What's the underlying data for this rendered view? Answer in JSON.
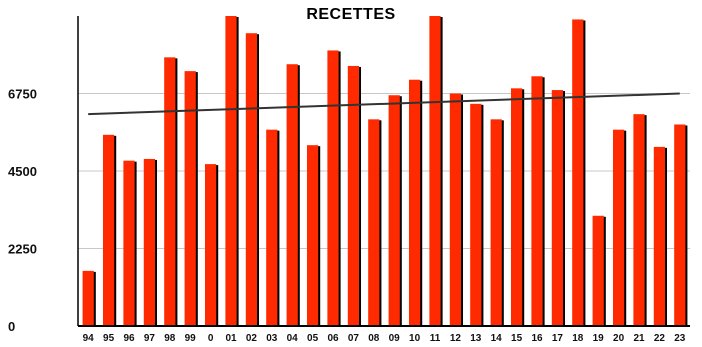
{
  "chart_data": {
    "type": "bar",
    "title": "RECETTES",
    "xlabel": "",
    "ylabel": "",
    "categories": [
      "94",
      "95",
      "96",
      "97",
      "98",
      "99",
      "0",
      "01",
      "02",
      "03",
      "04",
      "05",
      "06",
      "07",
      "08",
      "09",
      "10",
      "11",
      "12",
      "13",
      "14",
      "15",
      "16",
      "17",
      "18",
      "19",
      "20",
      "21",
      "22",
      "23"
    ],
    "values": [
      1600,
      5550,
      4800,
      4850,
      7800,
      7400,
      4700,
      9100,
      8500,
      5700,
      7600,
      5250,
      8000,
      7550,
      6000,
      6700,
      7150,
      9100,
      6750,
      6450,
      6000,
      6900,
      7250,
      6850,
      8900,
      3200,
      5700,
      6150,
      5200,
      5850
    ],
    "trendline": {
      "start": 6150,
      "end": 6750
    },
    "yticks": [
      "0",
      "2250",
      "4500",
      "6750"
    ],
    "ylim": [
      0,
      9000
    ],
    "grid": true,
    "legend": "none",
    "colors": {
      "bar": "#ff2a00",
      "bar_shadow": "#000000",
      "trend": "#333333",
      "grid": "#c8c8c8"
    }
  }
}
